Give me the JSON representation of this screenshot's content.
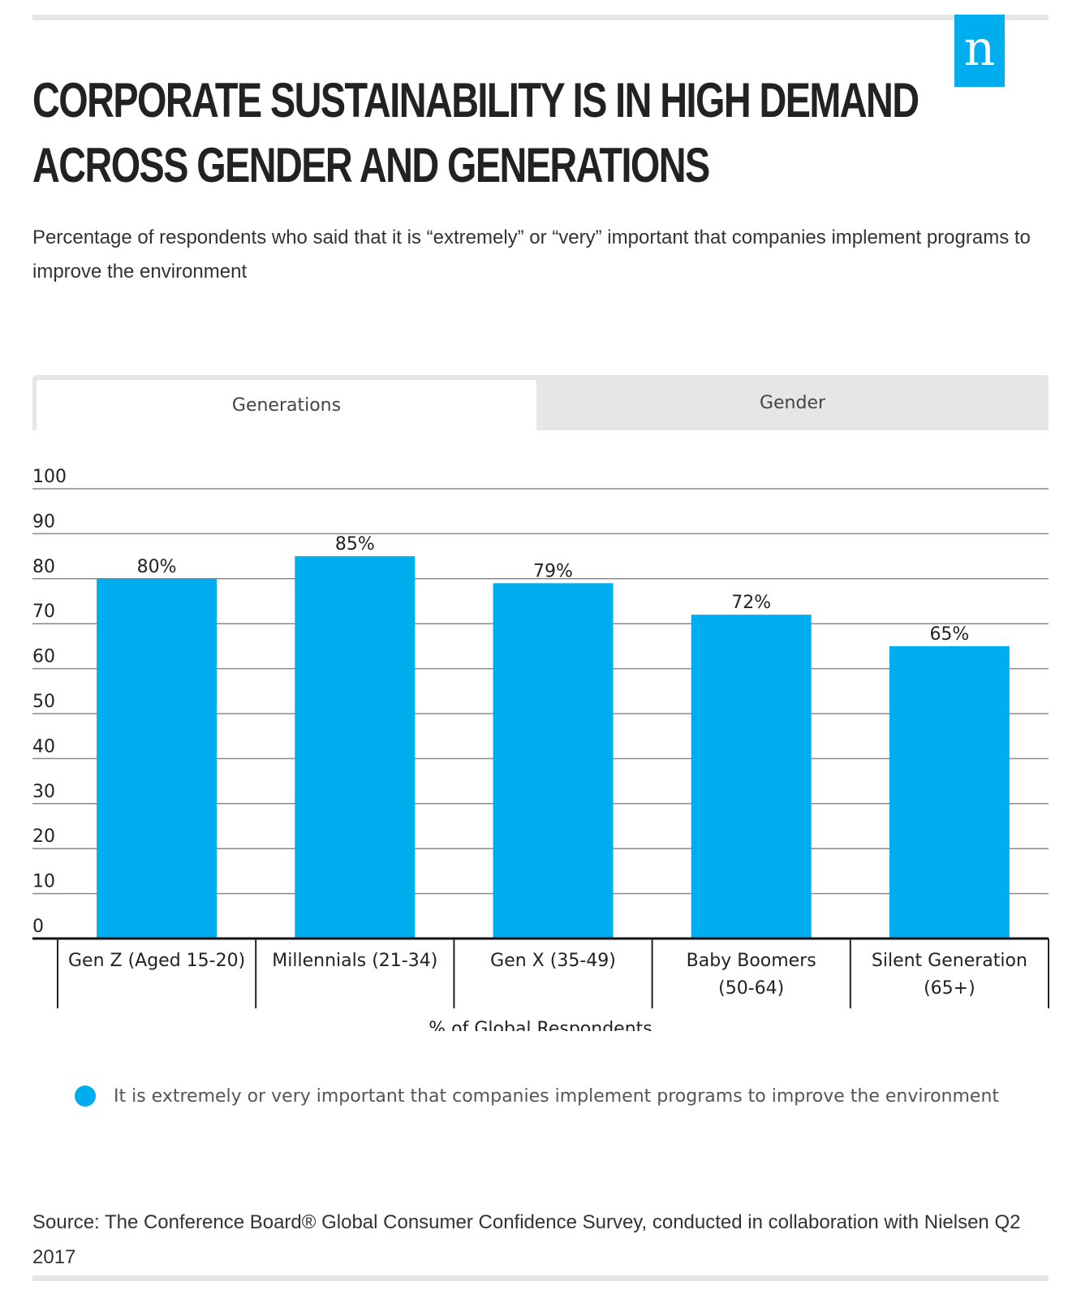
{
  "header": {
    "title_line1": "CORPORATE SUSTAINABILITY IS IN HIGH DEMAND",
    "title_line2": "ACROSS GENDER AND GENERATIONS",
    "subtitle": "Percentage of respondents who said that it is “extremely” or “very” important that companies implement programs to improve the environment",
    "logo_text": "n"
  },
  "tabs": {
    "generations": "Generations",
    "gender": "Gender",
    "active": "Generations"
  },
  "colors": {
    "bar": "#00aeef",
    "grid": "#8a8a8a",
    "tab_inactive": "#e6e6e6"
  },
  "chart_data": {
    "type": "bar",
    "title": "CORPORATE SUSTAINABILITY IS IN HIGH DEMAND ACROSS GENDER AND GENERATIONS",
    "categories": [
      [
        "Gen Z (Aged 15-20)"
      ],
      [
        "Millennials (21-34)"
      ],
      [
        "Gen X (35-49)"
      ],
      [
        "Baby Boomers",
        "(50-64)"
      ],
      [
        "Silent Generation",
        "(65+)"
      ]
    ],
    "values": [
      80,
      85,
      79,
      72,
      65
    ],
    "value_labels": [
      "80%",
      "85%",
      "79%",
      "72%",
      "65%"
    ],
    "series": [
      {
        "name": "It is extremely or very important that companies implement programs to improve the environment",
        "values": [
          80,
          85,
          79,
          72,
          65
        ]
      }
    ],
    "xlabel": "% of Global Respondents",
    "ylabel": "",
    "ylim": [
      0,
      100
    ],
    "yticks": [
      0,
      10,
      20,
      30,
      40,
      50,
      60,
      70,
      80,
      90,
      100
    ],
    "grid": true,
    "legend": "bottom"
  },
  "legend": {
    "label": "It is extremely or very important that companies implement programs to improve the environment"
  },
  "footer": {
    "source": "Source: The Conference Board® Global Consumer Confidence Survey, conducted in collaboration with Nielsen Q2 2017"
  }
}
